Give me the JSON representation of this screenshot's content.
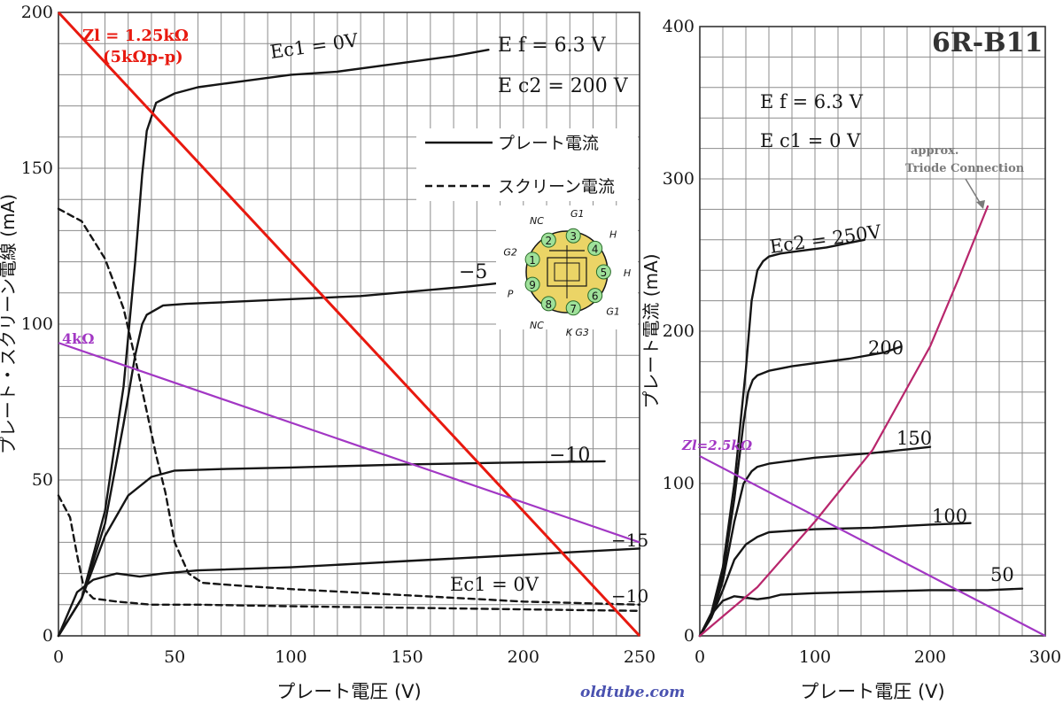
{
  "title": "6R-B11",
  "watermark": "oldtube.com",
  "colors": {
    "red_load": "#e8190f",
    "purple_load": "#a237c4",
    "triode_curve": "#b8266c",
    "grid": "#8c8c8c",
    "ink": "#151515",
    "pin_fill": "#9fe19a"
  },
  "chart_data": [
    {
      "type": "line",
      "id": "left",
      "xlabel": "プレート電圧 (V)",
      "ylabel": "プレート・スクリーン電線 (mA)",
      "xlim": [
        0,
        250
      ],
      "ylim": [
        0,
        200
      ],
      "xticks": [
        "0",
        "50",
        "100",
        "150",
        "200",
        "250"
      ],
      "yticks": [
        "0",
        "50",
        "100",
        "150",
        "200"
      ],
      "grid": true,
      "conditions": [
        "E f = 6.3 V",
        "E c2 = 200 V"
      ],
      "legend": [
        {
          "label": "プレート電流",
          "style": "solid"
        },
        {
          "label": "スクリーン電流",
          "style": "dashed"
        }
      ],
      "legend_position": "top-right",
      "series": [
        {
          "name": "Ec1 = 0V",
          "style": "solid",
          "x": [
            0,
            10,
            20,
            28,
            33,
            36,
            38,
            42,
            50,
            60,
            80,
            100,
            120,
            150,
            170,
            185
          ],
          "y": [
            0,
            12,
            40,
            80,
            120,
            148,
            162,
            171,
            174,
            176,
            178,
            180,
            181,
            184,
            186,
            188
          ]
        },
        {
          "name": "−5",
          "style": "solid",
          "x": [
            0,
            10,
            20,
            28,
            33,
            36,
            38,
            45,
            55,
            70,
            100,
            130,
            160,
            175,
            188
          ],
          "y": [
            0,
            12,
            36,
            68,
            90,
            100,
            103,
            106,
            106.5,
            107,
            108,
            109,
            111,
            112,
            113
          ]
        },
        {
          "name": "−10",
          "style": "solid",
          "x": [
            0,
            10,
            20,
            30,
            40,
            50,
            70,
            100,
            150,
            190,
            235
          ],
          "y": [
            0,
            12,
            32,
            45,
            51,
            53,
            53.5,
            54,
            55,
            55.5,
            56
          ]
        },
        {
          "name": "−15",
          "style": "solid",
          "x": [
            0,
            8,
            15,
            25,
            35,
            45,
            60,
            100,
            150,
            200,
            250
          ],
          "y": [
            0,
            14,
            18,
            20,
            19,
            20,
            21,
            22,
            24,
            26,
            28
          ]
        },
        {
          "name": "Ec1 = 0V",
          "style": "dashed",
          "x": [
            0,
            10,
            20,
            28,
            33,
            38,
            42,
            46,
            50,
            56,
            62,
            80,
            100,
            150,
            200,
            250
          ],
          "y": [
            137,
            133,
            121,
            105,
            89,
            72,
            58,
            46,
            30,
            20,
            17,
            16,
            15,
            13,
            11,
            10
          ]
        },
        {
          "name": "−10",
          "style": "dashed",
          "x": [
            0,
            5,
            8,
            11,
            15,
            25,
            40,
            60,
            100,
            150,
            200,
            250
          ],
          "y": [
            45,
            38,
            26,
            15,
            12,
            11,
            10,
            10,
            9.5,
            9,
            8.5,
            8
          ]
        }
      ],
      "load_lines": [
        {
          "label": "Zl = 1.25kΩ",
          "sublabel": "(5kΩp-p)",
          "x": [
            0,
            250
          ],
          "y": [
            200,
            0
          ],
          "color": "red"
        },
        {
          "label": "4kΩ",
          "x": [
            0,
            250
          ],
          "y": [
            94,
            30
          ],
          "color": "purple"
        }
      ],
      "pin_diagram": {
        "pins": [
          "1",
          "2",
          "3",
          "4",
          "5",
          "6",
          "7",
          "8",
          "9"
        ],
        "labels": [
          "G2",
          "NC",
          "G1",
          "H",
          "H",
          "G1",
          "K G3",
          "NC",
          "P"
        ]
      }
    },
    {
      "type": "line",
      "id": "right",
      "xlabel": "プレート電圧 (V)",
      "ylabel": "プレート電流 (mA)",
      "xlim": [
        0,
        300
      ],
      "ylim": [
        0,
        400
      ],
      "xticks": [
        "0",
        "100",
        "200",
        "300"
      ],
      "yticks": [
        "0",
        "100",
        "200",
        "300",
        "400"
      ],
      "grid": true,
      "conditions": [
        "E f = 6.3 V",
        "E c1 = 0 V"
      ],
      "series": [
        {
          "name": "Ec2 = 250V",
          "style": "solid",
          "x": [
            0,
            10,
            20,
            30,
            40,
            45,
            50,
            55,
            60,
            70,
            90,
            110,
            130,
            143
          ],
          "y": [
            0,
            15,
            45,
            100,
            175,
            220,
            240,
            246,
            249,
            251,
            253,
            255,
            258,
            260
          ]
        },
        {
          "name": "200",
          "style": "solid",
          "x": [
            0,
            10,
            20,
            30,
            38,
            42,
            46,
            50,
            60,
            80,
            100,
            130,
            160,
            175
          ],
          "y": [
            0,
            14,
            40,
            90,
            140,
            160,
            168,
            171,
            174,
            177,
            179,
            182,
            186,
            190
          ]
        },
        {
          "name": "150",
          "style": "solid",
          "x": [
            0,
            10,
            20,
            30,
            38,
            45,
            50,
            60,
            80,
            100,
            150,
            200
          ],
          "y": [
            0,
            12,
            36,
            75,
            100,
            108,
            111,
            113,
            115,
            117,
            120,
            124
          ]
        },
        {
          "name": "100",
          "style": "solid",
          "x": [
            0,
            10,
            20,
            30,
            40,
            50,
            60,
            80,
            100,
            150,
            200,
            235
          ],
          "y": [
            0,
            12,
            30,
            50,
            60,
            65,
            68,
            69,
            70,
            71,
            73,
            74
          ]
        },
        {
          "name": "50",
          "style": "solid",
          "x": [
            0,
            10,
            20,
            30,
            40,
            50,
            60,
            70,
            100,
            150,
            200,
            250,
            280
          ],
          "y": [
            0,
            14,
            23,
            26,
            25,
            24,
            25,
            27,
            28,
            29,
            30,
            30,
            31
          ]
        },
        {
          "name": "approx. Triode Connection",
          "style": "solid",
          "color": "triode",
          "x": [
            0,
            50,
            100,
            150,
            200,
            225,
            250
          ],
          "y": [
            0,
            32,
            75,
            122,
            190,
            235,
            282
          ]
        }
      ],
      "load_lines": [
        {
          "label": "Zl=2.5kΩ",
          "x": [
            0,
            300
          ],
          "y": [
            118,
            0
          ],
          "color": "purple"
        }
      ],
      "annotation": {
        "text": [
          "approx.",
          "Triode Connection"
        ]
      }
    }
  ]
}
